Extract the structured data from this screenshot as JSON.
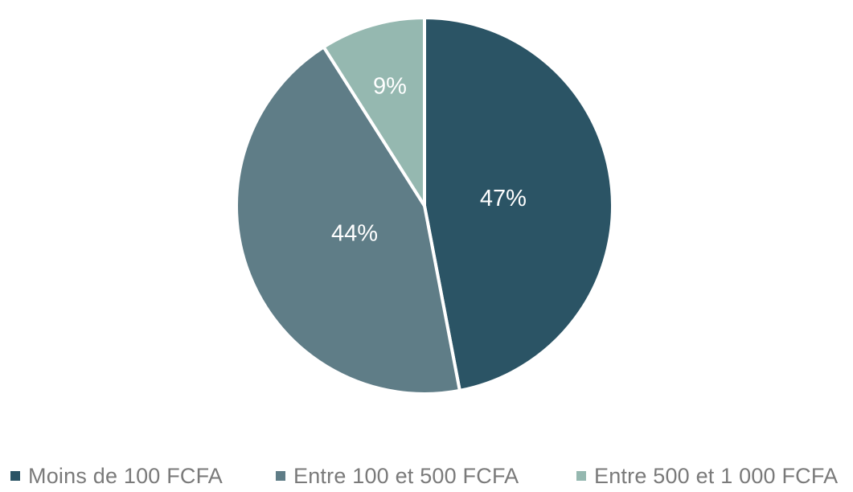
{
  "chart_data": {
    "type": "pie",
    "categories": [
      "Moins de 100 FCFA",
      "Entre 100 et 500 FCFA",
      "Entre 500 et 1 000 FCFA"
    ],
    "values": [
      47,
      44,
      9
    ],
    "labels": [
      "47%",
      "44%",
      "9%"
    ],
    "colors": [
      "#2b5465",
      "#5f7d87",
      "#95b8b0"
    ],
    "start": "12 o'clock",
    "direction": "clockwise",
    "legend": "bottom"
  }
}
